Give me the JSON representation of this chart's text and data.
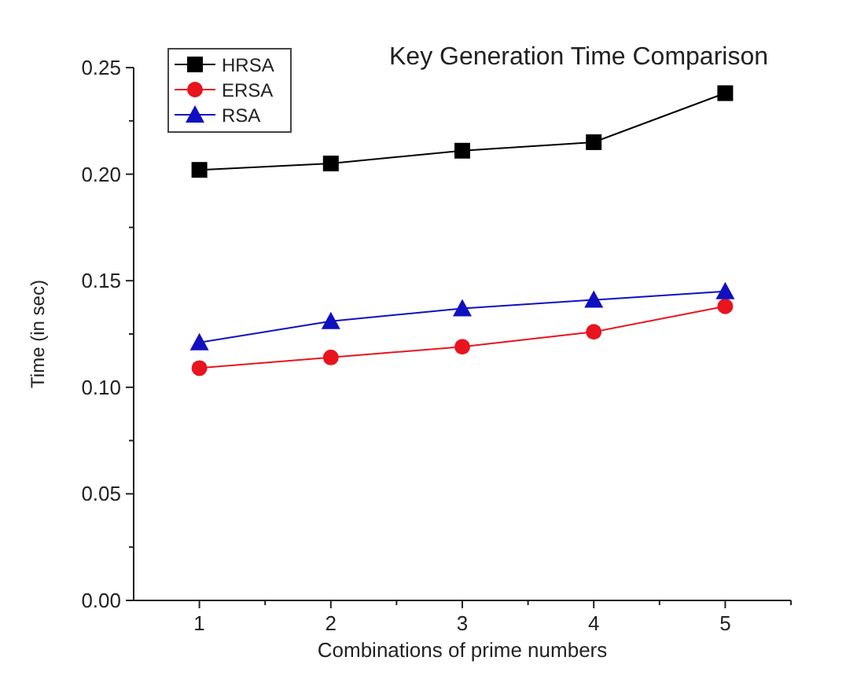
{
  "chart_data": {
    "type": "line",
    "title": "Key Generation Time Comparison",
    "xlabel": "Combinations of prime numbers",
    "ylabel": "Time (in sec)",
    "x": [
      1,
      2,
      3,
      4,
      5
    ],
    "series": [
      {
        "name": "HRSA",
        "color": "#000000",
        "marker": "square",
        "values": [
          0.202,
          0.205,
          0.211,
          0.215,
          0.238
        ]
      },
      {
        "name": "ERSA",
        "color": "#e8141e",
        "marker": "circle",
        "values": [
          0.109,
          0.114,
          0.119,
          0.126,
          0.138
        ]
      },
      {
        "name": "RSA",
        "color": "#1010c0",
        "marker": "triangle",
        "values": [
          0.121,
          0.131,
          0.137,
          0.141,
          0.145
        ]
      }
    ],
    "xlim": [
      0.5,
      5.5
    ],
    "xticks": [
      1,
      {
        "value": 1.5,
        "label": null
      },
      2,
      {
        "value": 2.5,
        "label": null
      },
      3,
      {
        "value": 3.5,
        "label": null
      },
      4,
      {
        "value": 4.5,
        "label": null
      },
      5,
      {
        "value": 5.5,
        "label": null
      }
    ],
    "ylim": [
      0,
      0.25
    ],
    "yticks": [
      {
        "value": 0,
        "label": "0.00"
      },
      {
        "value": 0.025,
        "label": null
      },
      {
        "value": 0.05,
        "label": "0.05"
      },
      {
        "value": 0.075,
        "label": null
      },
      {
        "value": 0.1,
        "label": "0.10"
      },
      {
        "value": 0.125,
        "label": null
      },
      {
        "value": 0.15,
        "label": "0.15"
      },
      {
        "value": 0.175,
        "label": null
      },
      {
        "value": 0.2,
        "label": "0.20"
      },
      {
        "value": 0.225,
        "label": null
      },
      {
        "value": 0.25,
        "label": "0.25"
      }
    ],
    "grid": false,
    "legend": "top left",
    "line_style": "solid"
  }
}
